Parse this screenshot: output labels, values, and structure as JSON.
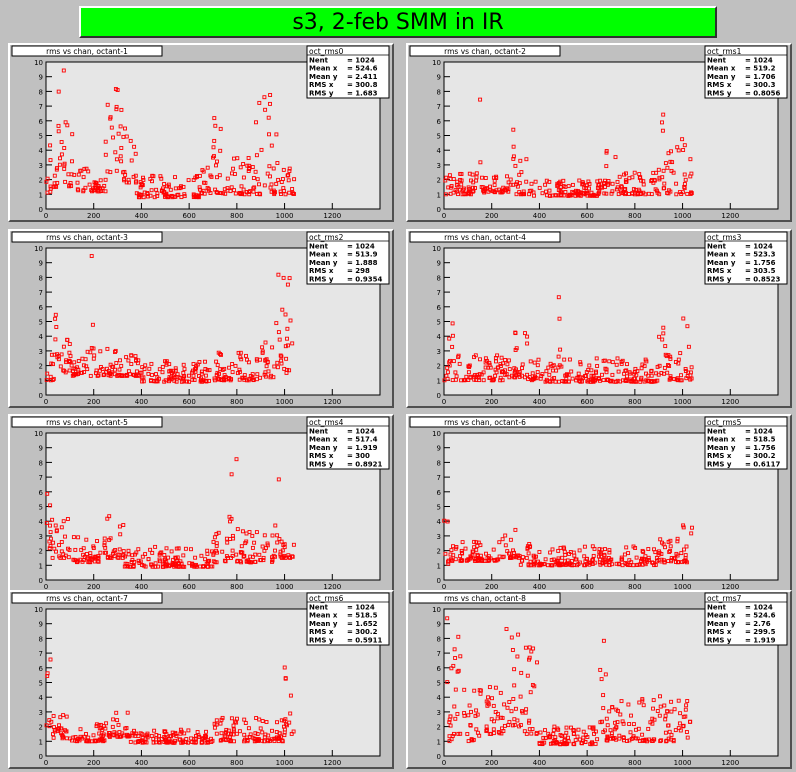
{
  "banner": {
    "title": "s3, 2-feb SMM in IR"
  },
  "colors": {
    "banner": "#00ff00",
    "marker": "#ff0000",
    "frame": "#e6e6e6",
    "pad": "#c0c0c0"
  },
  "chart_data": [
    {
      "type": "scatter",
      "title": "rms vs chan, octant-1",
      "stats_name": "oct_rms0",
      "stats": [
        [
          "Nent",
          "= 1024"
        ],
        [
          "Mean x",
          "= 524.6"
        ],
        [
          "Mean y",
          "= 2.411"
        ],
        [
          "RMS x",
          "= 300.8"
        ],
        [
          "RMS y",
          "= 1.683"
        ]
      ],
      "xlim": [
        0,
        1400
      ],
      "ylim": [
        0,
        10
      ],
      "xticks": [
        0,
        200,
        400,
        600,
        800,
        1000,
        1200
      ],
      "yticks": [
        0,
        1,
        2,
        3,
        4,
        5,
        6,
        7,
        8,
        9,
        10
      ],
      "regions": [
        [
          0,
          25,
          1,
          6.5
        ],
        [
          25,
          50,
          1.5,
          3
        ],
        [
          50,
          75,
          3,
          9.5
        ],
        [
          75,
          125,
          1.5,
          6
        ],
        [
          125,
          250,
          1.2,
          2.8
        ],
        [
          250,
          300,
          2.5,
          9
        ],
        [
          300,
          320,
          3,
          9.9
        ],
        [
          320,
          380,
          1.8,
          6.5
        ],
        [
          380,
          650,
          0.8,
          2.3
        ],
        [
          650,
          700,
          1,
          3.5
        ],
        [
          700,
          760,
          1,
          6.5
        ],
        [
          760,
          880,
          1,
          3.5
        ],
        [
          880,
          980,
          1,
          8.3
        ],
        [
          980,
          1040,
          1,
          3
        ]
      ]
    },
    {
      "type": "scatter",
      "title": "rms vs chan, octant-2",
      "stats_name": "oct_rms1",
      "stats": [
        [
          "Nent",
          "= 1024"
        ],
        [
          "Mean x",
          "= 519.2"
        ],
        [
          "Mean y",
          "= 1.706"
        ],
        [
          "RMS x",
          "= 300.3"
        ],
        [
          "RMS y",
          "= 0.8056"
        ]
      ],
      "xlim": [
        0,
        1400
      ],
      "ylim": [
        0,
        10
      ],
      "xticks": [
        0,
        200,
        400,
        600,
        800,
        1000,
        1200
      ],
      "yticks": [
        0,
        1,
        2,
        3,
        4,
        5,
        6,
        7,
        8,
        9,
        10
      ],
      "regions": [
        [
          0,
          150,
          1,
          2.5
        ],
        [
          150,
          160,
          1.2,
          8.5
        ],
        [
          160,
          280,
          1.1,
          2.3
        ],
        [
          280,
          300,
          1,
          6
        ],
        [
          300,
          360,
          1,
          3.5
        ],
        [
          360,
          650,
          0.9,
          2
        ],
        [
          650,
          720,
          1,
          4
        ],
        [
          720,
          880,
          1,
          2.5
        ],
        [
          880,
          910,
          1,
          4
        ],
        [
          910,
          920,
          2,
          8
        ],
        [
          920,
          1040,
          1,
          5
        ]
      ]
    },
    {
      "type": "scatter",
      "title": "rms vs chan, octant-3",
      "stats_name": "oct_rms2",
      "stats": [
        [
          "Nent",
          "= 1024"
        ],
        [
          "Mean x",
          "= 513.9"
        ],
        [
          "Mean y",
          "= 1.888"
        ],
        [
          "RMS x",
          "=   298"
        ],
        [
          "RMS y",
          "= 0.9354"
        ]
      ],
      "xlim": [
        0,
        1400
      ],
      "ylim": [
        0,
        10
      ],
      "xticks": [
        0,
        200,
        400,
        600,
        800,
        1000,
        1200
      ],
      "yticks": [
        0,
        1,
        2,
        3,
        4,
        5,
        6,
        7,
        8,
        9,
        10
      ],
      "regions": [
        [
          0,
          50,
          1,
          5.5
        ],
        [
          50,
          100,
          1.5,
          3.8
        ],
        [
          100,
          110,
          2,
          7
        ],
        [
          110,
          190,
          1.3,
          3
        ],
        [
          190,
          200,
          2,
          9.6
        ],
        [
          200,
          400,
          1.3,
          3.2
        ],
        [
          400,
          700,
          0.9,
          2.3
        ],
        [
          700,
          900,
          1,
          3
        ],
        [
          900,
          960,
          1.2,
          3.8
        ],
        [
          960,
          1000,
          1.5,
          8.5
        ],
        [
          1000,
          1040,
          1.5,
          8
        ]
      ]
    },
    {
      "type": "scatter",
      "title": "rms vs chan, octant-4",
      "stats_name": "oct_rms3",
      "stats": [
        [
          "Nent",
          "= 1024"
        ],
        [
          "Mean x",
          "= 523.3"
        ],
        [
          "Mean y",
          "= 1.756"
        ],
        [
          "RMS x",
          "= 303.5"
        ],
        [
          "RMS y",
          "= 0.8523"
        ]
      ],
      "xlim": [
        0,
        1400
      ],
      "ylim": [
        0,
        10
      ],
      "xticks": [
        0,
        200,
        400,
        600,
        800,
        1000,
        1200
      ],
      "yticks": [
        0,
        1,
        2,
        3,
        4,
        5,
        6,
        7,
        8,
        9,
        10
      ],
      "regions": [
        [
          0,
          50,
          1,
          5
        ],
        [
          50,
          250,
          1,
          2.8
        ],
        [
          250,
          350,
          1.2,
          4.5
        ],
        [
          350,
          400,
          1,
          2.5
        ],
        [
          400,
          900,
          0.9,
          2.5
        ],
        [
          480,
          490,
          2,
          7.8
        ],
        [
          900,
          930,
          1.2,
          8.5
        ],
        [
          930,
          1000,
          1,
          3
        ],
        [
          1000,
          1040,
          1,
          5.5
        ]
      ]
    },
    {
      "type": "scatter",
      "title": "rms vs chan, octant-5",
      "stats_name": "oct_rms4",
      "stats": [
        [
          "Nent",
          "= 1024"
        ],
        [
          "Mean x",
          "= 517.4"
        ],
        [
          "Mean y",
          "= 1.919"
        ],
        [
          "RMS x",
          "=   300"
        ],
        [
          "RMS y",
          "= 0.8921"
        ]
      ],
      "xlim": [
        0,
        1400
      ],
      "ylim": [
        0,
        10
      ],
      "xticks": [
        0,
        200,
        400,
        600,
        800,
        1000,
        1200
      ],
      "yticks": [
        0,
        1,
        2,
        3,
        4,
        5,
        6,
        7,
        8,
        9,
        10
      ],
      "regions": [
        [
          0,
          40,
          1.5,
          6.2
        ],
        [
          40,
          100,
          1.5,
          4.5
        ],
        [
          100,
          250,
          1.2,
          3
        ],
        [
          250,
          330,
          1.5,
          4.5
        ],
        [
          330,
          700,
          0.9,
          2.3
        ],
        [
          700,
          760,
          1.2,
          3.5
        ],
        [
          760,
          800,
          1.5,
          8.7
        ],
        [
          800,
          960,
          1.2,
          3.5
        ],
        [
          960,
          980,
          2,
          6.9
        ],
        [
          980,
          1040,
          1.5,
          3.5
        ]
      ]
    },
    {
      "type": "scatter",
      "title": "rms vs chan, octant-6",
      "stats_name": "oct_rms5",
      "stats": [
        [
          "Nent",
          "= 1024"
        ],
        [
          "Mean x",
          "= 518.5"
        ],
        [
          "Mean y",
          "= 1.756"
        ],
        [
          "RMS x",
          "= 300.2"
        ],
        [
          "RMS y",
          "= 0.6117"
        ]
      ],
      "xlim": [
        0,
        1400
      ],
      "ylim": [
        0,
        10
      ],
      "xticks": [
        0,
        200,
        400,
        600,
        800,
        1000,
        1200
      ],
      "yticks": [
        0,
        1,
        2,
        3,
        4,
        5,
        6,
        7,
        8,
        9,
        10
      ],
      "regions": [
        [
          0,
          20,
          1,
          4.5
        ],
        [
          20,
          250,
          1.3,
          2.8
        ],
        [
          250,
          320,
          1.5,
          3.8
        ],
        [
          320,
          400,
          1,
          2.5
        ],
        [
          400,
          900,
          1,
          2.3
        ],
        [
          900,
          1000,
          1.2,
          2.8
        ],
        [
          1000,
          1040,
          1.2,
          5.2
        ]
      ]
    },
    {
      "type": "scatter",
      "title": "rms vs chan, octant-7",
      "stats_name": "oct_rms6",
      "stats": [
        [
          "Nent",
          "= 1024"
        ],
        [
          "Mean x",
          "= 518.5"
        ],
        [
          "Mean y",
          "= 1.652"
        ],
        [
          "RMS x",
          "= 300.2"
        ],
        [
          "RMS y",
          "= 0.5911"
        ]
      ],
      "xlim": [
        0,
        1400
      ],
      "ylim": [
        0,
        10
      ],
      "xticks": [
        0,
        200,
        400,
        600,
        800,
        1000,
        1200
      ],
      "yticks": [
        0,
        1,
        2,
        3,
        4,
        5,
        6,
        7,
        8,
        9,
        10
      ],
      "regions": [
        [
          0,
          20,
          1.5,
          6.6
        ],
        [
          20,
          100,
          1.2,
          3
        ],
        [
          100,
          250,
          1,
          2.2
        ],
        [
          250,
          350,
          1.3,
          3
        ],
        [
          350,
          700,
          0.9,
          1.8
        ],
        [
          700,
          1000,
          1,
          2.6
        ],
        [
          1000,
          1040,
          1.5,
          7.5
        ]
      ]
    },
    {
      "type": "scatter",
      "title": "rms vs chan, octant-8",
      "stats_name": "oct_rms7",
      "stats": [
        [
          "Nent",
          "= 1024"
        ],
        [
          "Mean x",
          "= 524.6"
        ],
        [
          "Mean y",
          "= 2.76"
        ],
        [
          "RMS x",
          "= 299.5"
        ],
        [
          "RMS y",
          "= 1.919"
        ]
      ],
      "xlim": [
        0,
        1400
      ],
      "ylim": [
        0,
        10
      ],
      "xticks": [
        0,
        200,
        400,
        600,
        800,
        1000,
        1200
      ],
      "yticks": [
        0,
        1,
        2,
        3,
        4,
        5,
        6,
        7,
        8,
        9,
        10
      ],
      "regions": [
        [
          0,
          40,
          1,
          9.5
        ],
        [
          40,
          80,
          1.5,
          9
        ],
        [
          80,
          150,
          1,
          6
        ],
        [
          150,
          250,
          1.5,
          5
        ],
        [
          250,
          300,
          2,
          9
        ],
        [
          300,
          330,
          2,
          10
        ],
        [
          330,
          400,
          1.5,
          8
        ],
        [
          400,
          650,
          0.8,
          2
        ],
        [
          650,
          680,
          1.5,
          8.5
        ],
        [
          680,
          1040,
          1,
          4.2
        ]
      ]
    }
  ]
}
